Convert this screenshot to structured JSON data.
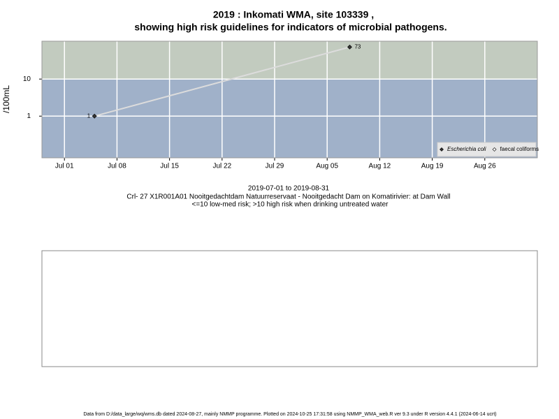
{
  "chart_data": {
    "type": "line",
    "title": "2019 : Inkomati WMA, site 103339 ,",
    "subtitle": "showing high risk guidelines for indicators of microbial pathogens.",
    "ylabel": "/100mL",
    "log_y": true,
    "grid": true,
    "guideline": 10,
    "band_colors": {
      "above": "#c2cbbf",
      "below": "#a0b1c9"
    },
    "x": [
      "2019-07-05",
      "2019-08-08"
    ],
    "series": [
      {
        "name": "Escherichia coli",
        "color": "#333333",
        "line_color": "#dcdcdc",
        "values": [
          1,
          73
        ],
        "value_labels": [
          "1",
          "73"
        ]
      },
      {
        "name": "faecal coliforms",
        "color": "#ffffff",
        "line_color": "#dcdcdc",
        "values": [
          null,
          null
        ]
      }
    ],
    "xlim": [
      "2019-06-28",
      "2019-09-02"
    ],
    "xticks": [
      {
        "value": "2019-07-01",
        "label": "Jul 01"
      },
      {
        "value": "2019-07-08",
        "label": "Jul 08"
      },
      {
        "value": "2019-07-15",
        "label": "Jul 15"
      },
      {
        "value": "2019-07-22",
        "label": "Jul 22"
      },
      {
        "value": "2019-07-29",
        "label": "Jul 29"
      },
      {
        "value": "2019-08-05",
        "label": "Aug 05"
      },
      {
        "value": "2019-08-12",
        "label": "Aug 12"
      },
      {
        "value": "2019-08-19",
        "label": "Aug 19"
      },
      {
        "value": "2019-08-26",
        "label": "Aug 26"
      }
    ],
    "ylim": [
      0.075,
      105
    ],
    "yticks": [
      1,
      10
    ],
    "legend": "bottom-right",
    "caption": [
      "2019-07-01 to 2019-08-31",
      "Crl- 27 X1R001A01 Nooitgedachtdam Natuurreservaat - Nooitgedacht Dam on Komatirivier: at Dam Wall",
      "<=10 low-med risk; >10 high risk when drinking untreated water"
    ],
    "footer": "Data from D:/data_large/wq/wms.db dated 2024-08-27, mainly NMMP programme. Plotted on 2024-10-25 17:31:58 using NMMP_WMA_web.R ver 9.3 under R version 4.4.1 (2024-06-14 ucrt)"
  }
}
